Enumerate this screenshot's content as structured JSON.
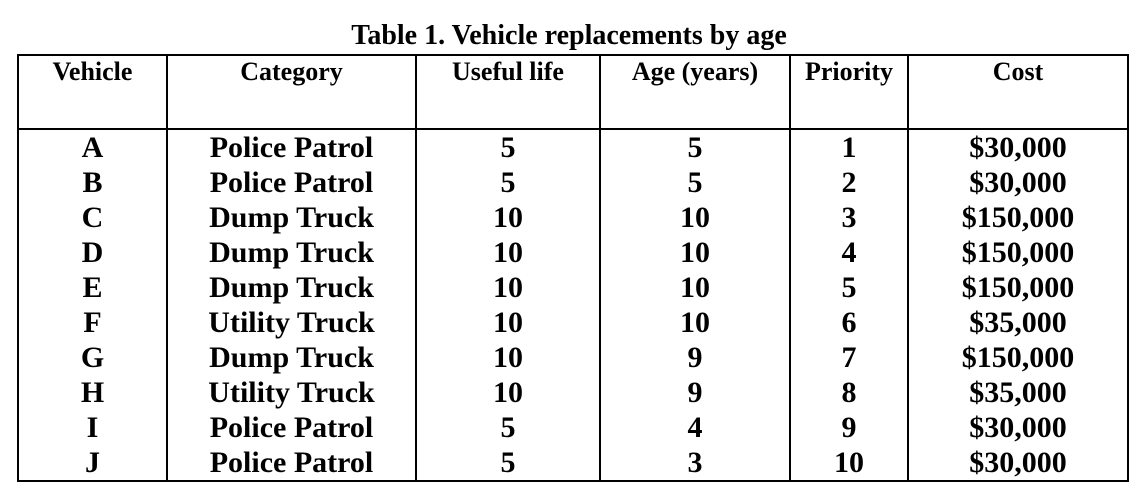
{
  "caption": "Table 1. Vehicle replacements by age",
  "headers": {
    "vehicle": "Vehicle",
    "category": "Category",
    "useful_life": "Useful life",
    "age": "Age (years)",
    "priority": "Priority",
    "cost": "Cost"
  },
  "rows": [
    {
      "vehicle": "A",
      "category": "Police Patrol",
      "useful_life": "5",
      "age": "5",
      "priority": "1",
      "cost": "$30,000"
    },
    {
      "vehicle": "B",
      "category": "Police Patrol",
      "useful_life": "5",
      "age": "5",
      "priority": "2",
      "cost": "$30,000"
    },
    {
      "vehicle": "C",
      "category": "Dump Truck",
      "useful_life": "10",
      "age": "10",
      "priority": "3",
      "cost": "$150,000"
    },
    {
      "vehicle": "D",
      "category": "Dump Truck",
      "useful_life": "10",
      "age": "10",
      "priority": "4",
      "cost": "$150,000"
    },
    {
      "vehicle": "E",
      "category": "Dump Truck",
      "useful_life": "10",
      "age": "10",
      "priority": "5",
      "cost": "$150,000"
    },
    {
      "vehicle": "F",
      "category": "Utility Truck",
      "useful_life": "10",
      "age": "10",
      "priority": "6",
      "cost": "$35,000"
    },
    {
      "vehicle": "G",
      "category": "Dump Truck",
      "useful_life": "10",
      "age": "9",
      "priority": "7",
      "cost": "$150,000"
    },
    {
      "vehicle": "H",
      "category": "Utility Truck",
      "useful_life": "10",
      "age": "9",
      "priority": "8",
      "cost": "$35,000"
    },
    {
      "vehicle": "I",
      "category": "Police Patrol",
      "useful_life": "5",
      "age": "4",
      "priority": "9",
      "cost": "$30,000"
    },
    {
      "vehicle": "J",
      "category": "Police Patrol",
      "useful_life": "5",
      "age": "3",
      "priority": "10",
      "cost": "$30,000"
    }
  ]
}
